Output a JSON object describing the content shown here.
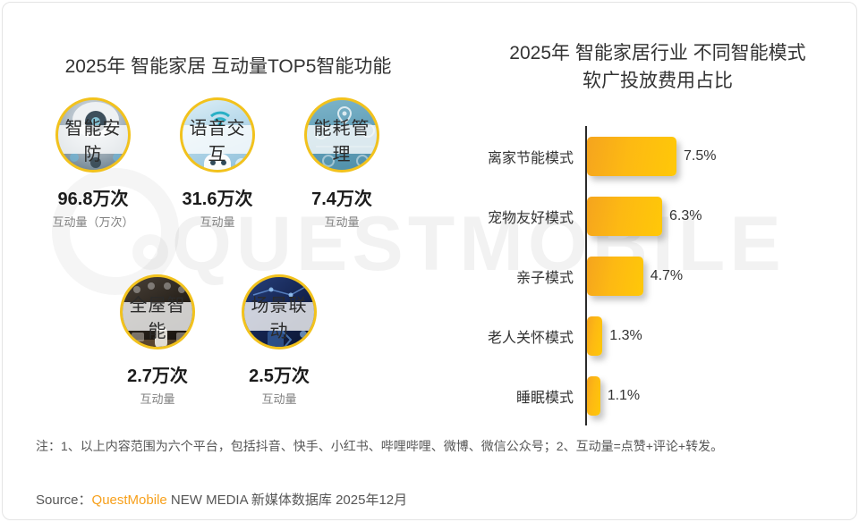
{
  "left_chart": {
    "title": "2025年 智能家居 互动量TOP5智能功能",
    "items": [
      {
        "label": "智能安防",
        "value": "96.8万次",
        "unit": "互动量（万次）"
      },
      {
        "label": "语音交互",
        "value": "31.6万次",
        "unit": "互动量"
      },
      {
        "label": "能耗管理",
        "value": "7.4万次",
        "unit": "互动量"
      },
      {
        "label": "全屋智能",
        "value": "2.7万次",
        "unit": "互动量"
      },
      {
        "label": "场景联动",
        "value": "2.5万次",
        "unit": "互动量"
      }
    ]
  },
  "right_chart": {
    "title_line1": "2025年 智能家居行业 不同智能模式",
    "title_line2": "软广投放费用占比",
    "bars": [
      {
        "label": "离家节能模式",
        "value": 7.5,
        "display": "7.5%"
      },
      {
        "label": "宠物友好模式",
        "value": 6.3,
        "display": "6.3%"
      },
      {
        "label": "亲子模式",
        "value": 4.7,
        "display": "4.7%"
      },
      {
        "label": "老人关怀模式",
        "value": 1.3,
        "display": "1.3%"
      },
      {
        "label": "睡眠模式",
        "value": 1.1,
        "display": "1.1%"
      }
    ]
  },
  "chart_data": [
    {
      "type": "bar",
      "title": "2025年 智能家居 互动量TOP5智能功能",
      "categories": [
        "智能安防",
        "语音交互",
        "能耗管理",
        "全屋智能",
        "场景联动"
      ],
      "values": [
        96.8,
        31.6,
        7.4,
        2.7,
        2.5
      ],
      "ylabel": "互动量（万次）",
      "unit": "万次",
      "legend_position": "none",
      "grid": false
    },
    {
      "type": "bar",
      "orientation": "horizontal",
      "title": "2025年 智能家居行业 不同智能模式 软广投放费用占比",
      "categories": [
        "离家节能模式",
        "宠物友好模式",
        "亲子模式",
        "老人关怀模式",
        "睡眠模式"
      ],
      "values": [
        7.5,
        6.3,
        4.7,
        1.3,
        1.1
      ],
      "unit": "%",
      "xlim": [
        0,
        8
      ],
      "grid": false,
      "legend_position": "none",
      "bar_color": "#FDB913"
    }
  ],
  "watermark": {
    "text": "QUESTMOBILE"
  },
  "footer": {
    "note": "注：1、以上内容范围为六个平台，包括抖音、快手、小红书、哔哩哔哩、微博、微信公众号；2、互动量=点赞+评论+转发。",
    "source_label": "Source：",
    "source_brand": "QuestMobile",
    "source_rest": " NEW MEDIA 新媒体数据库 2025年12月"
  },
  "colors": {
    "accent_gold": "#FDB913",
    "bar_gradient_start": "#F5A41E",
    "bar_gradient_end": "#FFC808",
    "circle_border": "#F2C21D",
    "title_text": "#333333",
    "note_text": "#565656",
    "brand_orange": "#F7A01B"
  }
}
